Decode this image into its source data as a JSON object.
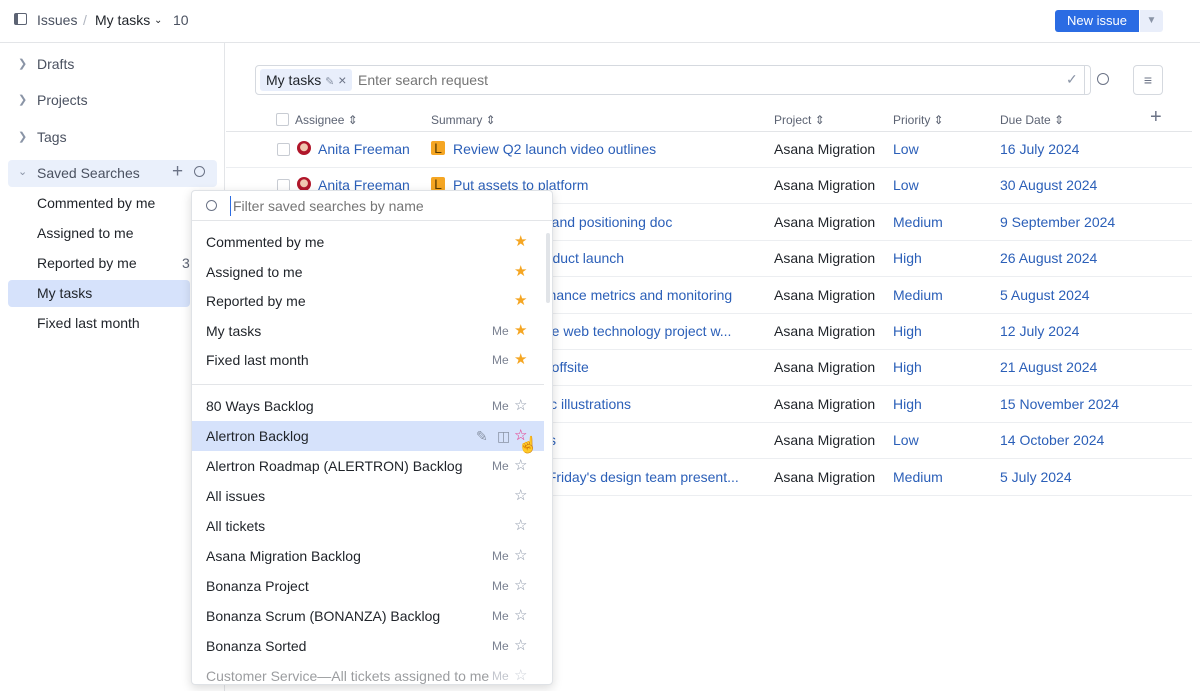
{
  "header": {
    "breadcrumb_root": "Issues",
    "current": "My tasks",
    "count": "10",
    "new_issue": "New issue"
  },
  "sidebar": {
    "items": [
      {
        "label": "Drafts"
      },
      {
        "label": "Projects"
      },
      {
        "label": "Tags"
      }
    ],
    "saved_searches": {
      "label": "Saved Searches",
      "items": [
        {
          "label": "Commented by me"
        },
        {
          "label": "Assigned to me"
        },
        {
          "label": "Reported by me",
          "count": "3"
        },
        {
          "label": "My tasks",
          "active": true
        },
        {
          "label": "Fixed last month"
        }
      ]
    }
  },
  "search": {
    "chip": "My tasks",
    "placeholder": "Enter search request"
  },
  "table": {
    "headers": [
      "Assignee",
      "Summary",
      "Project",
      "Priority",
      "Due Date"
    ],
    "rows": [
      {
        "assignee": "Anita Freeman",
        "summary": "Review Q2 launch video outlines",
        "project": "Asana Migration",
        "priority": "Low",
        "due": "16 July 2024"
      },
      {
        "assignee": "Anita Freeman",
        "summary": "Put assets to platform",
        "project": "Asana Migration",
        "priority": "Low",
        "due": "30 August 2024"
      },
      {
        "summary": "g and positioning doc",
        "project": "Asana Migration",
        "priority": "Medium",
        "due": "9 September 2024"
      },
      {
        "summary": "roduct launch",
        "project": "Asana Migration",
        "priority": "High",
        "due": "26 August 2024"
      },
      {
        "summary": "rmance metrics and monitoring",
        "project": "Asana Migration",
        "priority": "Medium",
        "due": "5 August 2024"
      },
      {
        "summary": "ate web technology project w...",
        "project": "Asana Migration",
        "priority": "High",
        "due": "12 July 2024"
      },
      {
        "summary": "n offsite",
        "project": "Asana Migration",
        "priority": "High",
        "due": "21 August 2024"
      },
      {
        "summary": "ific illustrations",
        "project": "Asana Migration",
        "priority": "High",
        "due": "15 November 2024"
      },
      {
        "summary": "s",
        "project": "Asana Migration",
        "priority": "Low",
        "due": "14 October 2024"
      },
      {
        "summary": ": Friday's design team present...",
        "project": "Asana Migration",
        "priority": "Medium",
        "due": "5 July 2024"
      }
    ]
  },
  "dropdown": {
    "placeholder": "Filter saved searches by name",
    "pinned": [
      {
        "label": "Commented by me",
        "owner": "",
        "starred": true
      },
      {
        "label": "Assigned to me",
        "owner": "",
        "starred": true
      },
      {
        "label": "Reported by me",
        "owner": "",
        "starred": true
      },
      {
        "label": "My tasks",
        "owner": "Me",
        "starred": true
      },
      {
        "label": "Fixed last month",
        "owner": "Me",
        "starred": true
      }
    ],
    "all": [
      {
        "label": "80 Ways Backlog",
        "owner": "Me"
      },
      {
        "label": "Alertron Backlog",
        "owner": "",
        "hovered": true
      },
      {
        "label": "Alertron Roadmap (ALERTRON) Backlog",
        "owner": "Me"
      },
      {
        "label": "All issues",
        "owner": ""
      },
      {
        "label": "All tickets",
        "owner": ""
      },
      {
        "label": "Asana Migration Backlog",
        "owner": "Me"
      },
      {
        "label": "Bonanza Project",
        "owner": "Me"
      },
      {
        "label": "Bonanza Scrum (BONANZA) Backlog",
        "owner": "Me"
      },
      {
        "label": "Bonanza Sorted",
        "owner": "Me"
      },
      {
        "label": "Customer Service—All tickets assigned to me",
        "owner": "Me"
      }
    ]
  },
  "colors": {
    "accent": "#2b6ce3",
    "link": "#2b5fb8",
    "star": "#f5a623",
    "hover_star": "#e8247c",
    "highlight": "#d6e2fb"
  }
}
